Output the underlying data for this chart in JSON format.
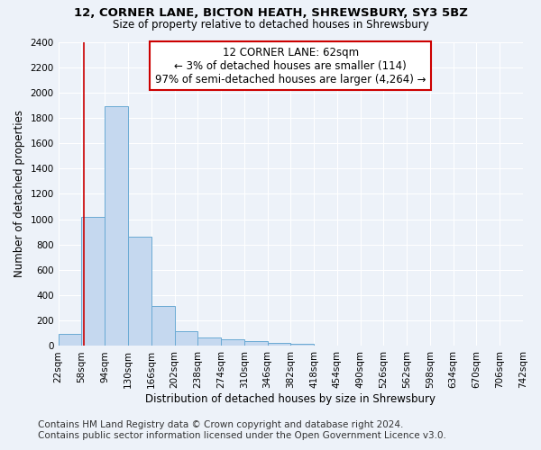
{
  "title1": "12, CORNER LANE, BICTON HEATH, SHREWSBURY, SY3 5BZ",
  "title2": "Size of property relative to detached houses in Shrewsbury",
  "xlabel": "Distribution of detached houses by size in Shrewsbury",
  "ylabel": "Number of detached properties",
  "footer1": "Contains HM Land Registry data © Crown copyright and database right 2024.",
  "footer2": "Contains public sector information licensed under the Open Government Licence v3.0.",
  "annotation_line1": "12 CORNER LANE: 62sqm",
  "annotation_line2": "← 3% of detached houses are smaller (114)",
  "annotation_line3": "97% of semi-detached houses are larger (4,264) →",
  "property_size": 62,
  "bar_color": "#c5d8ef",
  "bar_edge_color": "#6aaad4",
  "vline_color": "#cc0000",
  "annotation_box_edgecolor": "#cc0000",
  "background_color": "#edf2f9",
  "bins": [
    22,
    58,
    94,
    130,
    166,
    202,
    238,
    274,
    310,
    346,
    382,
    418,
    454,
    490,
    526,
    562,
    598,
    634,
    670,
    706,
    742
  ],
  "counts": [
    95,
    1020,
    1890,
    860,
    315,
    120,
    65,
    55,
    40,
    25,
    20,
    0,
    0,
    0,
    0,
    0,
    0,
    0,
    0,
    0
  ],
  "ylim": [
    0,
    2400
  ],
  "yticks": [
    0,
    200,
    400,
    600,
    800,
    1000,
    1200,
    1400,
    1600,
    1800,
    2000,
    2200,
    2400
  ],
  "grid_color": "#ffffff",
  "title_fontsize": 9.5,
  "subtitle_fontsize": 8.5,
  "axis_label_fontsize": 8.5,
  "tick_fontsize": 7.5,
  "annotation_fontsize": 8.5,
  "footer_fontsize": 7.5
}
